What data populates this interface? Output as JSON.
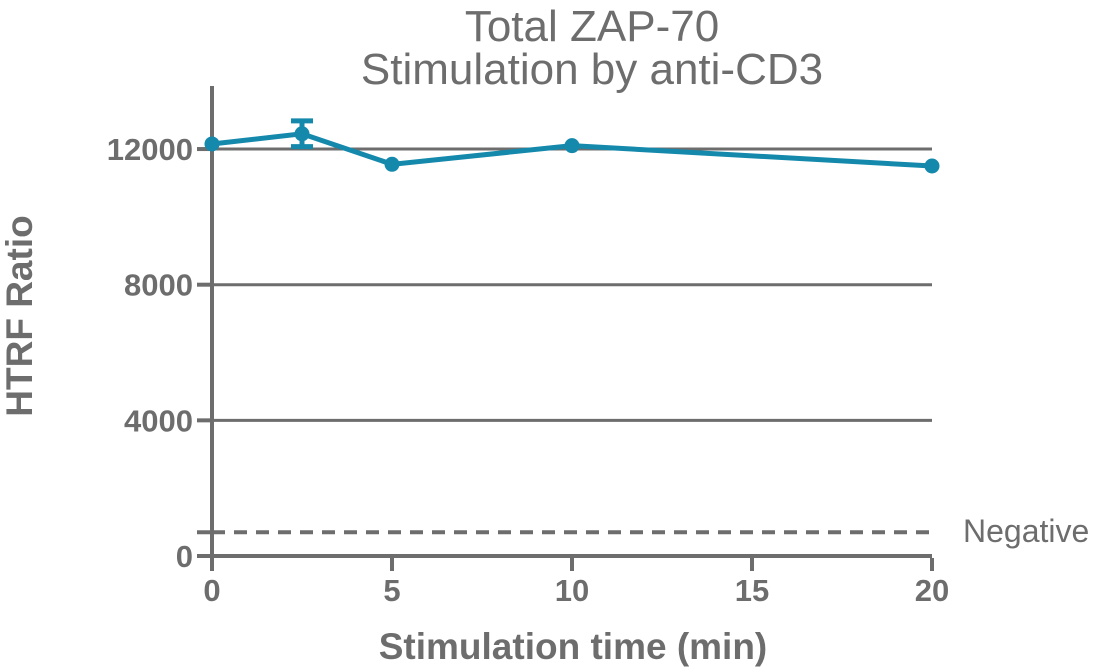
{
  "chart_data": {
    "type": "line",
    "title_lines": [
      "Total ZAP-70",
      "Stimulation by anti-CD3"
    ],
    "xlabel": "Stimulation time (min)",
    "ylabel": "HTRF Ratio",
    "x": [
      0,
      2.5,
      5,
      10,
      20
    ],
    "y": [
      12150,
      12450,
      11550,
      12100,
      11500
    ],
    "y_err": [
      null,
      380,
      null,
      null,
      null
    ],
    "x_ticks": [
      0,
      5,
      10,
      15,
      20
    ],
    "y_ticks": [
      0,
      4000,
      8000,
      12000
    ],
    "xlim": [
      0,
      20
    ],
    "ylim": [
      0,
      13800
    ],
    "grid": "horizontal-only",
    "legend": "none",
    "reference_line": {
      "value": 700,
      "label": "Negative",
      "style": "dashed"
    },
    "colors": {
      "series": "#1489ac",
      "axis": "#6d6d6d",
      "grid": "#6d6d6d",
      "text": "#6d6d6d"
    }
  }
}
